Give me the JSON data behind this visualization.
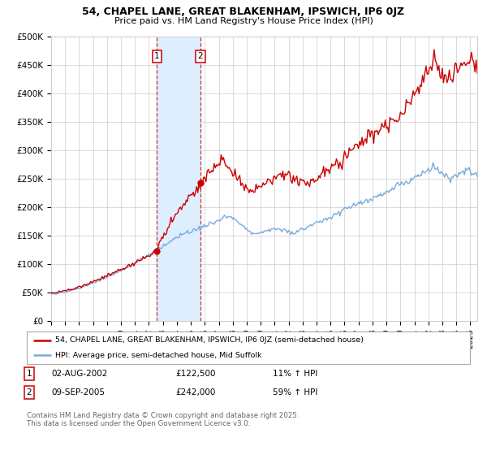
{
  "title": "54, CHAPEL LANE, GREAT BLAKENHAM, IPSWICH, IP6 0JZ",
  "subtitle": "Price paid vs. HM Land Registry's House Price Index (HPI)",
  "legend_line1": "54, CHAPEL LANE, GREAT BLAKENHAM, IPSWICH, IP6 0JZ (semi-detached house)",
  "legend_line2": "HPI: Average price, semi-detached house, Mid Suffolk",
  "footer": "Contains HM Land Registry data © Crown copyright and database right 2025.\nThis data is licensed under the Open Government Licence v3.0.",
  "transaction1_date": "02-AUG-2002",
  "transaction1_price": "£122,500",
  "transaction1_hpi": "11% ↑ HPI",
  "transaction2_date": "09-SEP-2005",
  "transaction2_price": "£242,000",
  "transaction2_hpi": "59% ↑ HPI",
  "transaction1_x": 2002.58,
  "transaction2_x": 2005.69,
  "transaction1_y": 122500,
  "transaction2_y": 242000,
  "ylim": [
    0,
    500000
  ],
  "xlim_start": 1995.0,
  "xlim_end": 2025.5,
  "yticks": [
    0,
    50000,
    100000,
    150000,
    200000,
    250000,
    300000,
    350000,
    400000,
    450000,
    500000
  ],
  "ytick_labels": [
    "£0",
    "£50K",
    "£100K",
    "£150K",
    "£200K",
    "£250K",
    "£300K",
    "£350K",
    "£400K",
    "£450K",
    "£500K"
  ],
  "hpi_color": "#7aacdc",
  "price_color": "#cc0000",
  "background_color": "#ffffff",
  "grid_color": "#cccccc",
  "shade_color": "#ddeeff",
  "vline_color": "#cc3333"
}
